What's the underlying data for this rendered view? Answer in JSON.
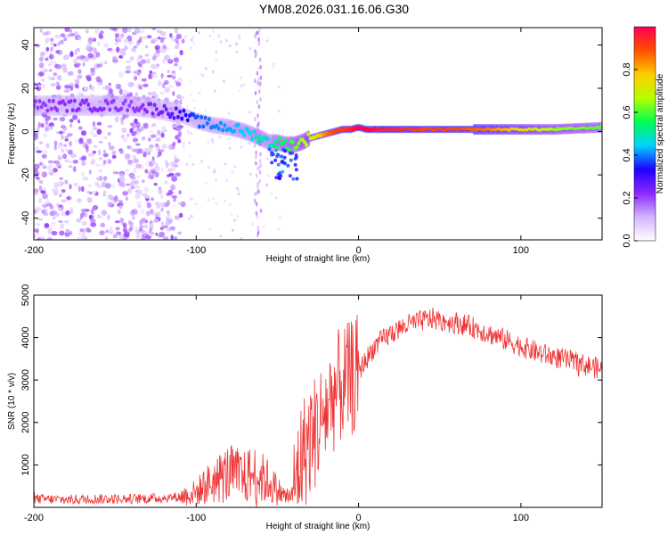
{
  "title": "YM08.2026.031.16.06.G30",
  "colorbar": {
    "label": "Normalized spectral amplitude",
    "range": [
      0.0,
      1.0
    ],
    "ticks": [
      "0.0",
      "0.2",
      "0.4",
      "0.6",
      "0.8"
    ],
    "tick_values": [
      0.0,
      0.2,
      0.4,
      0.6,
      0.8
    ],
    "stops": [
      "#ffffff",
      "#d2b4ff",
      "#8c28ff",
      "#2000ff",
      "#00d2ff",
      "#00ff50",
      "#b4ff00",
      "#ffcc00",
      "#ff5000",
      "#ff0050"
    ]
  },
  "chart_data": [
    {
      "type": "heatmap",
      "title": "YM08.2026.031.16.06.G30",
      "xlabel": "Height of straight line (km)",
      "ylabel": "Frequency (Hz)",
      "xlim": [
        -200,
        150
      ],
      "ylim": [
        -50,
        48
      ],
      "x_ticks": [
        -200,
        -100,
        0,
        100
      ],
      "x_tick_labels": [
        "-200",
        "-100",
        "0",
        "100"
      ],
      "y_ticks": [
        40,
        20,
        0,
        -20,
        -40
      ],
      "y_tick_labels": [
        "40",
        "20",
        "0",
        "-20",
        "-40"
      ],
      "ridge": {
        "x": [
          -200,
          -180,
          -160,
          -140,
          -120,
          -110,
          -100,
          -90,
          -80,
          -70,
          -60,
          -55,
          -50,
          -45,
          -40,
          -35,
          -30,
          -25,
          -20,
          -15,
          -10,
          -5,
          0,
          5,
          10,
          15,
          20,
          40,
          60,
          80,
          100,
          120,
          150
        ],
        "freq": [
          12,
          12,
          12,
          12,
          10,
          8,
          5,
          3,
          2,
          0,
          -3,
          -5,
          -5,
          -6,
          -6,
          -5,
          -3,
          -2,
          -1,
          0,
          1,
          1,
          2,
          1,
          1,
          1,
          1,
          1,
          1,
          1,
          1,
          1,
          2
        ],
        "amplitude": [
          0.2,
          0.22,
          0.22,
          0.2,
          0.25,
          0.3,
          0.38,
          0.4,
          0.42,
          0.45,
          0.5,
          0.45,
          0.55,
          0.55,
          0.6,
          0.65,
          0.7,
          0.75,
          0.85,
          0.9,
          0.92,
          0.95,
          1.0,
          1.0,
          0.98,
          0.95,
          0.95,
          0.9,
          0.9,
          0.85,
          0.75,
          0.65,
          0.6
        ]
      }
    },
    {
      "type": "line",
      "xlabel": "Height of straight line (km)",
      "ylabel": "SNR (10 * v/v)",
      "xlim": [
        -200,
        150
      ],
      "ylim": [
        0,
        5000
      ],
      "x_ticks": [
        -200,
        -100,
        0,
        100
      ],
      "x_tick_labels": [
        "-200",
        "-100",
        "0",
        "100"
      ],
      "y_ticks": [
        1000,
        2000,
        3000,
        4000,
        5000
      ],
      "y_tick_labels": [
        "1000",
        "2000",
        "3000",
        "4000",
        "5000"
      ],
      "color": "#ee3333",
      "series": [
        {
          "name": "SNR",
          "x": [
            -200,
            -180,
            -160,
            -140,
            -120,
            -110,
            -100,
            -95,
            -90,
            -85,
            -80,
            -75,
            -70,
            -65,
            -60,
            -55,
            -50,
            -45,
            -40,
            -38,
            -35,
            -30,
            -25,
            -20,
            -15,
            -10,
            -5,
            0,
            5,
            10,
            15,
            20,
            25,
            30,
            35,
            40,
            45,
            50,
            60,
            70,
            80,
            90,
            100,
            110,
            120,
            130,
            140,
            150
          ],
          "y": [
            200,
            180,
            200,
            200,
            220,
            250,
            350,
            500,
            600,
            700,
            800,
            750,
            700,
            800,
            700,
            600,
            400,
            250,
            300,
            800,
            1200,
            1600,
            1900,
            2300,
            2700,
            2900,
            3000,
            3200,
            3500,
            3800,
            3950,
            4100,
            4200,
            4300,
            4350,
            4400,
            4450,
            4400,
            4350,
            4250,
            4100,
            3950,
            3800,
            3650,
            3550,
            3450,
            3350,
            3250
          ]
        }
      ]
    }
  ]
}
